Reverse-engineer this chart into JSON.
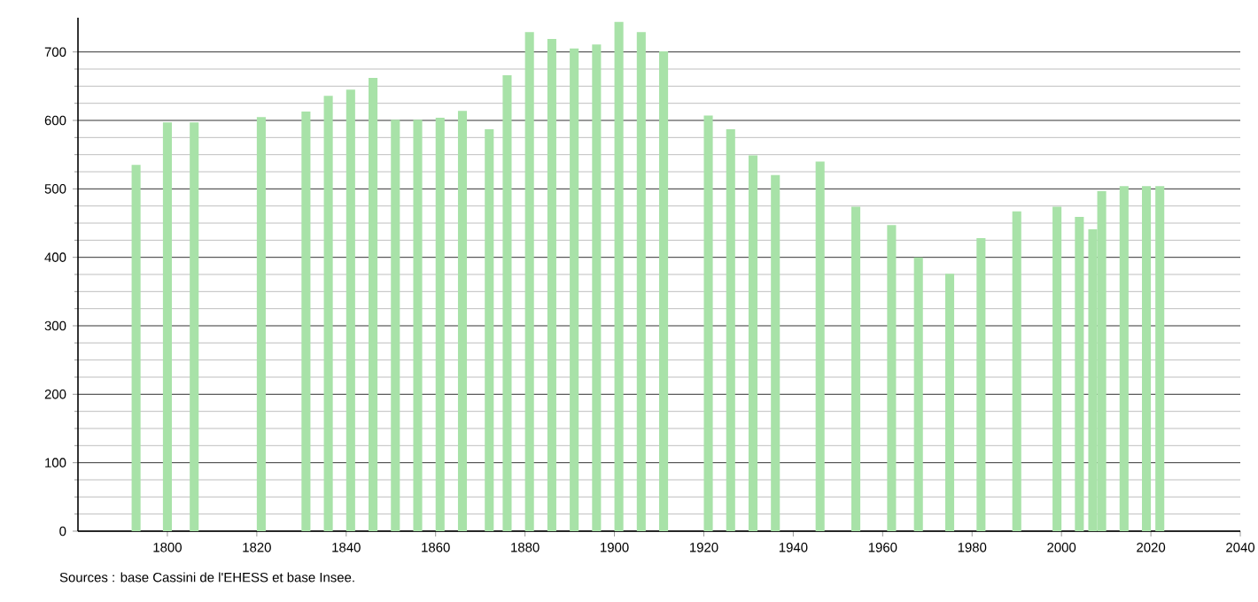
{
  "chart_data": {
    "type": "bar",
    "x": [
      1793,
      1800,
      1806,
      1821,
      1831,
      1836,
      1841,
      1846,
      1851,
      1856,
      1861,
      1866,
      1872,
      1876,
      1881,
      1886,
      1891,
      1896,
      1901,
      1906,
      1911,
      1921,
      1926,
      1931,
      1936,
      1946,
      1954,
      1962,
      1968,
      1975,
      1982,
      1990,
      1999,
      2004,
      2007,
      2009,
      2014,
      2019,
      2022
    ],
    "values": [
      535,
      597,
      597,
      605,
      613,
      636,
      645,
      662,
      601,
      601,
      604,
      614,
      587,
      666,
      729,
      719,
      705,
      711,
      744,
      729,
      701,
      607,
      587,
      549,
      520,
      540,
      474,
      447,
      400,
      376,
      428,
      467,
      474,
      459,
      441,
      497,
      504,
      504,
      504
    ],
    "color": "#a8e2a8",
    "xlim": [
      1780,
      2040
    ],
    "xticks": [
      1800,
      1820,
      1840,
      1860,
      1880,
      1900,
      1920,
      1940,
      1960,
      1980,
      2000,
      2020,
      2040
    ],
    "ylim": [
      0,
      750
    ],
    "yticks": [
      0,
      100,
      200,
      300,
      400,
      500,
      600,
      700
    ],
    "grid": "y",
    "annotations": [
      "Sources : base Cassini de l'EHESS et base Insee."
    ]
  }
}
